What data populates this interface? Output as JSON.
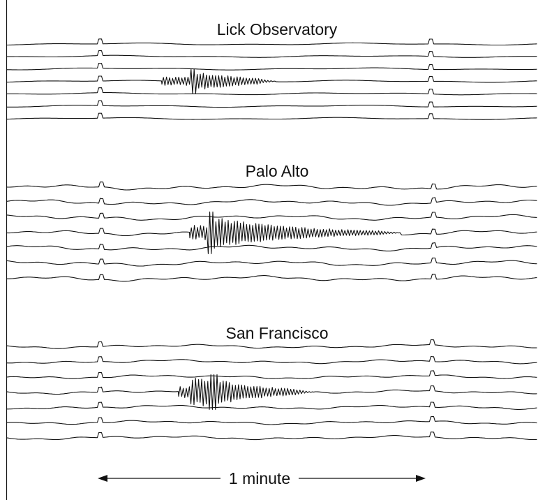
{
  "figure": {
    "colors": {
      "ink": "#111111",
      "background": "#ffffff"
    },
    "panels": [
      {
        "label": "Lick Observatory",
        "trace_count": 7,
        "burst_trace_index": 3
      },
      {
        "label": "Palo Alto",
        "trace_count": 7,
        "burst_trace_index": 3
      },
      {
        "label": "San Francisco",
        "trace_count": 7,
        "burst_trace_index": 3
      }
    ],
    "scale": {
      "label": "1 minute"
    }
  }
}
